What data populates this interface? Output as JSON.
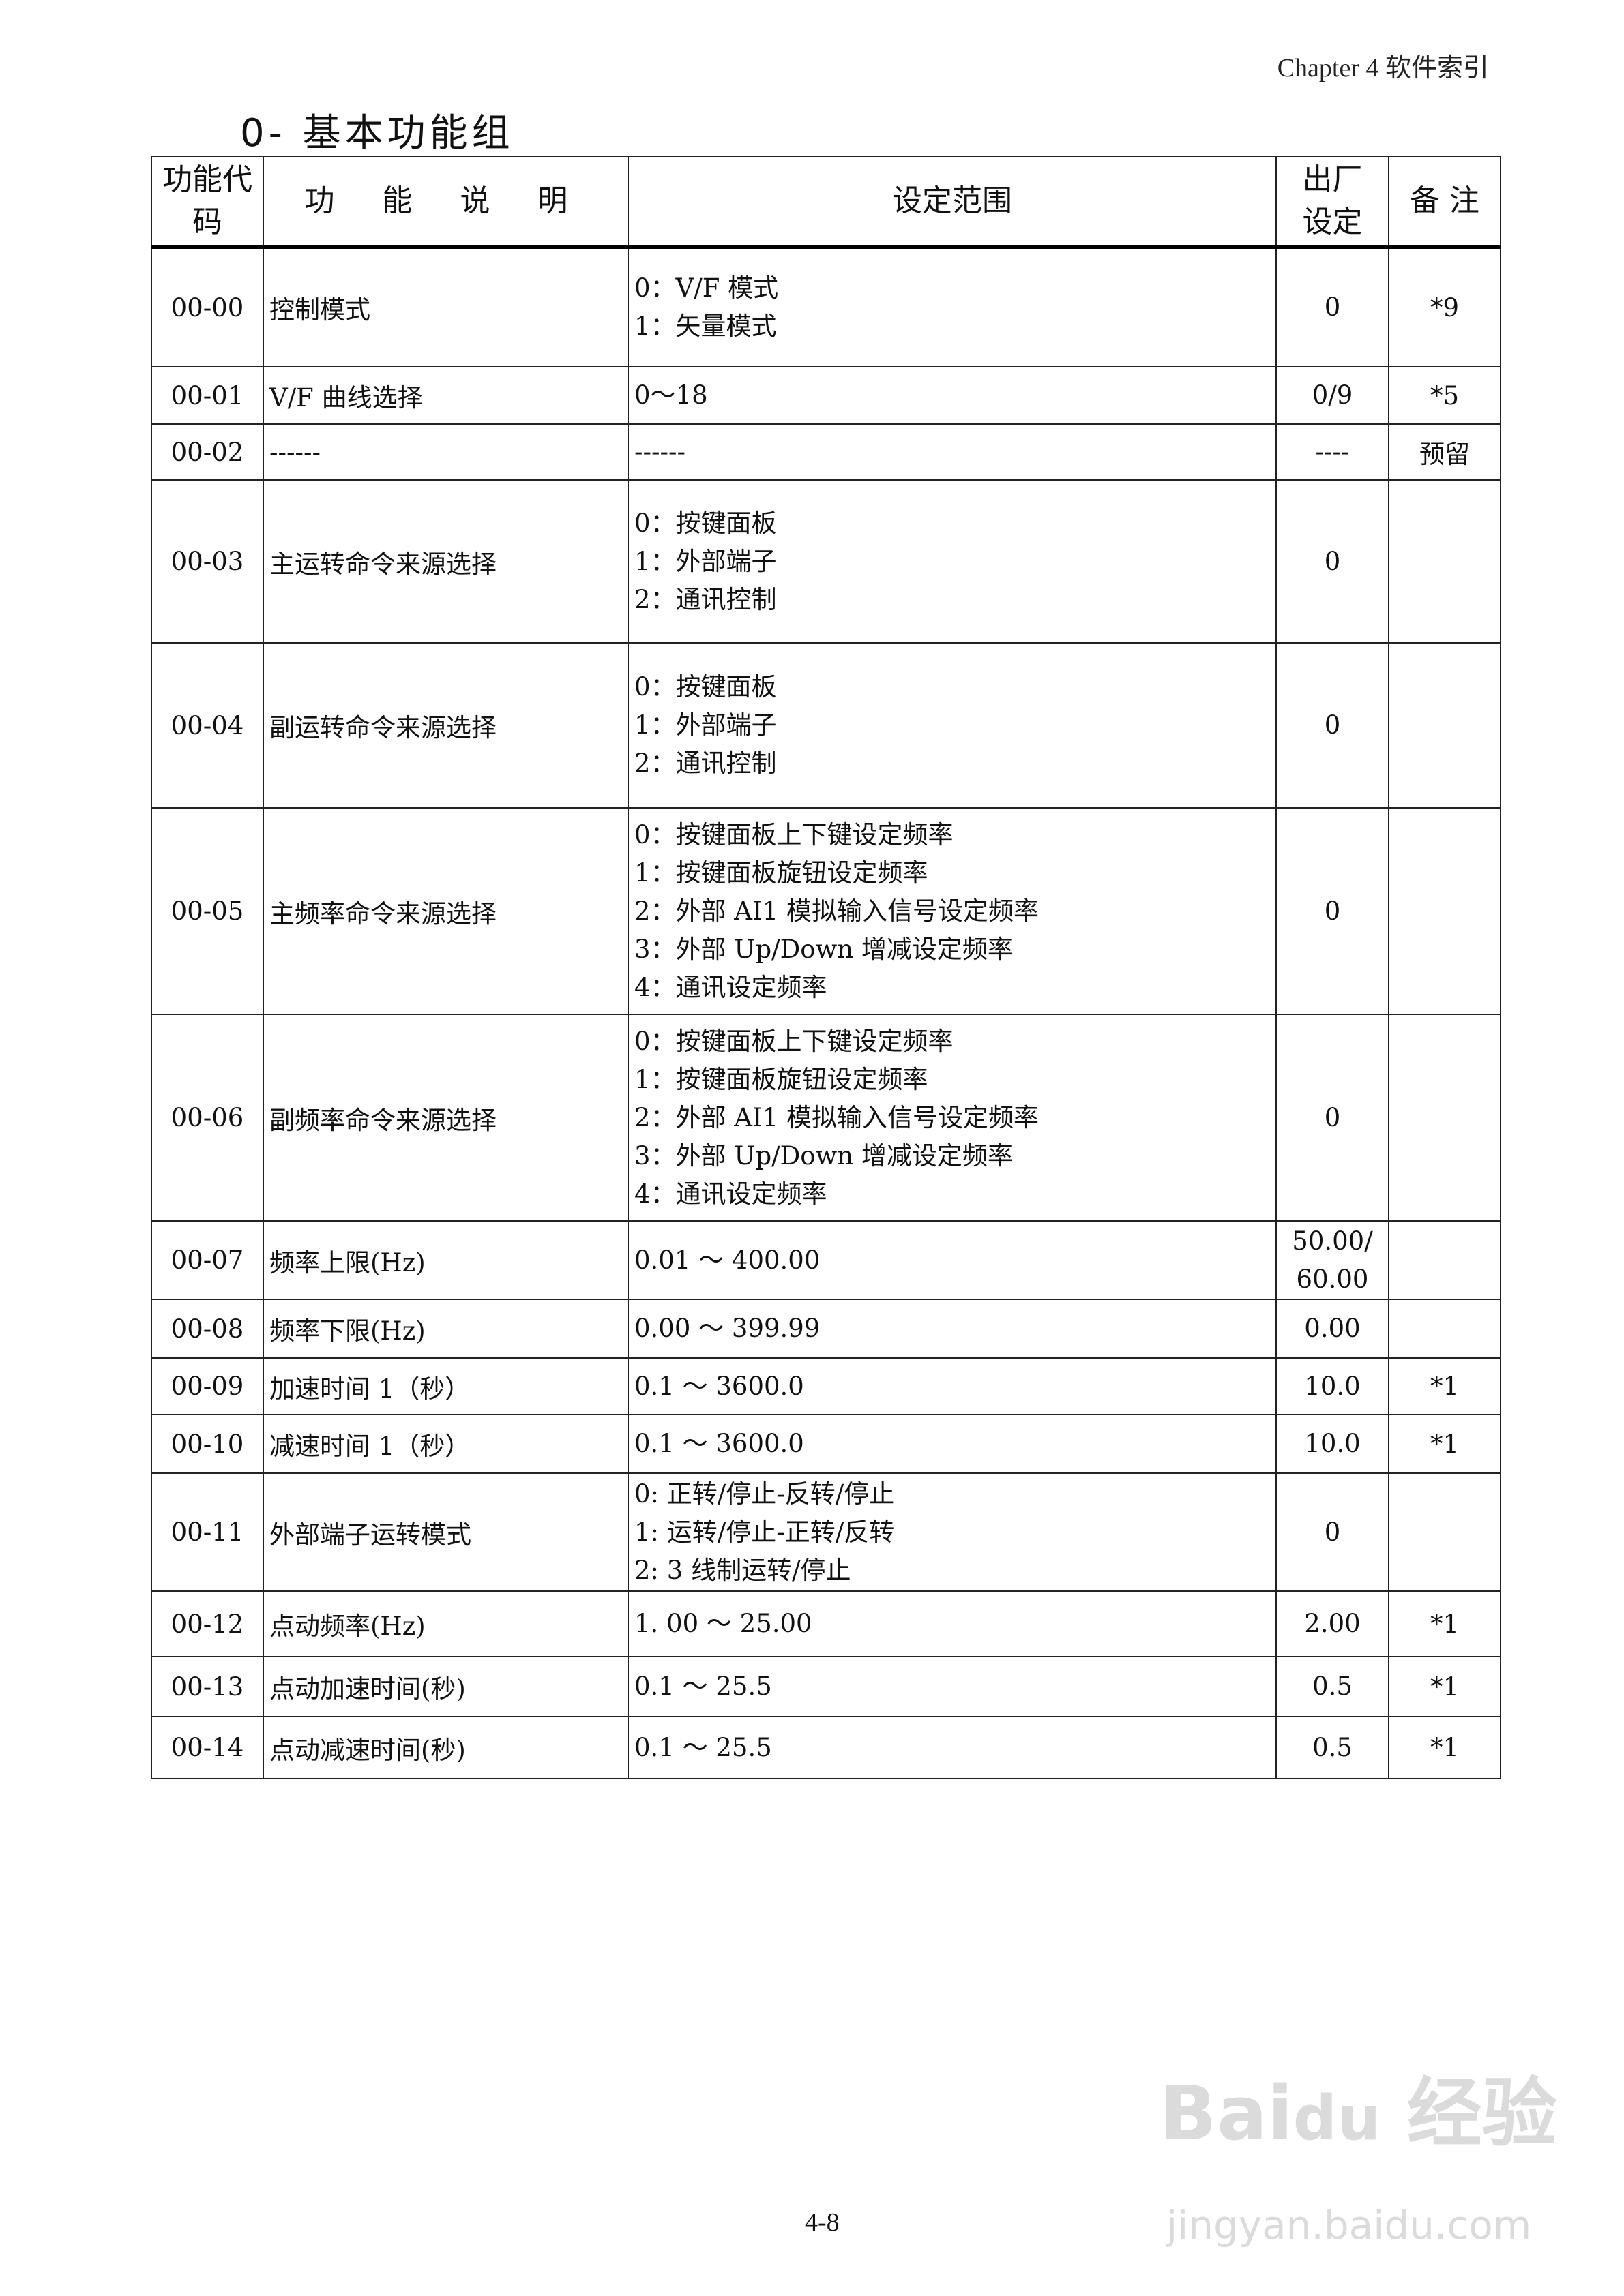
{
  "header": {
    "chapter": "Chapter 4  软件索引"
  },
  "title": "0-  基本功能组",
  "table": {
    "columns": [
      "功能代码",
      "功 能 说 明",
      "设定范围",
      "出厂设定",
      "备 注"
    ],
    "rows": [
      {
        "code": "00-00",
        "desc": "控制模式",
        "range": [
          "0：V/F 模式",
          "1：矢量模式"
        ],
        "default": [
          "0"
        ],
        "note": "*9"
      },
      {
        "code": "00-01",
        "desc": "V/F 曲线选择",
        "range": [
          "0～18"
        ],
        "default": [
          "0/9"
        ],
        "note": "*5"
      },
      {
        "code": "00-02",
        "desc": "------",
        "range": [
          "------"
        ],
        "default": [
          "----"
        ],
        "note": "预留"
      },
      {
        "code": "00-03",
        "desc": "主运转命令来源选择",
        "range": [
          "0：按键面板",
          "1：外部端子",
          "2：通讯控制"
        ],
        "default": [
          "0"
        ],
        "note": ""
      },
      {
        "code": "00-04",
        "desc": "副运转命令来源选择",
        "range": [
          "0：按键面板",
          "1：外部端子",
          "2：通讯控制"
        ],
        "default": [
          "0"
        ],
        "note": ""
      },
      {
        "code": "00-05",
        "desc": "主频率命令来源选择",
        "range": [
          "0：按键面板上下键设定频率",
          "1：按键面板旋钮设定频率",
          "2：外部 AI1 模拟输入信号设定频率",
          "3：外部 Up/Down 增减设定频率",
          "4：通讯设定频率"
        ],
        "default": [
          "0"
        ],
        "note": ""
      },
      {
        "code": "00-06",
        "desc": "副频率命令来源选择",
        "range": [
          "0：按键面板上下键设定频率",
          "1：按键面板旋钮设定频率",
          "2：外部 AI1 模拟输入信号设定频率",
          "3：外部 Up/Down 增减设定频率",
          "4：通讯设定频率"
        ],
        "default": [
          "0"
        ],
        "note": ""
      },
      {
        "code": "00-07",
        "desc": "频率上限(Hz)",
        "range": [
          "0.01 ～ 400.00"
        ],
        "default": [
          "50.00/",
          "60.00"
        ],
        "note": ""
      },
      {
        "code": "00-08",
        "desc": "频率下限(Hz)",
        "range": [
          "0.00 ～ 399.99"
        ],
        "default": [
          "0.00"
        ],
        "note": ""
      },
      {
        "code": "00-09",
        "desc": "加速时间 1（秒）",
        "range": [
          "0.1 ～ 3600.0"
        ],
        "default": [
          "10.0"
        ],
        "note": "*1"
      },
      {
        "code": "00-10",
        "desc": "减速时间 1（秒）",
        "range": [
          "0.1 ～ 3600.0"
        ],
        "default": [
          "10.0"
        ],
        "note": "*1"
      },
      {
        "code": "00-11",
        "desc": "外部端子运转模式",
        "range": [
          "0:  正转/停止-反转/停止",
          "1:  运转/停止-正转/反转",
          "2:  3 线制运转/停止"
        ],
        "default": [
          "0"
        ],
        "note": ""
      },
      {
        "code": "00-12",
        "desc": "点动频率(Hz)",
        "range": [
          "1. 00 ～ 25.00"
        ],
        "default": [
          "2.00"
        ],
        "note": "*1"
      },
      {
        "code": "00-13",
        "desc": "点动加速时间(秒)",
        "range": [
          "0.1 ～ 25.5"
        ],
        "default": [
          "0.5"
        ],
        "note": "*1"
      },
      {
        "code": "00-14",
        "desc": "点动减速时间(秒)",
        "range": [
          "0.1 ～ 25.5"
        ],
        "default": [
          "0.5"
        ],
        "note": "*1"
      }
    ]
  },
  "footer": {
    "page": "4-8"
  },
  "watermark": {
    "brand": "Baidu经验",
    "url": "jingyan.baidu.com"
  }
}
